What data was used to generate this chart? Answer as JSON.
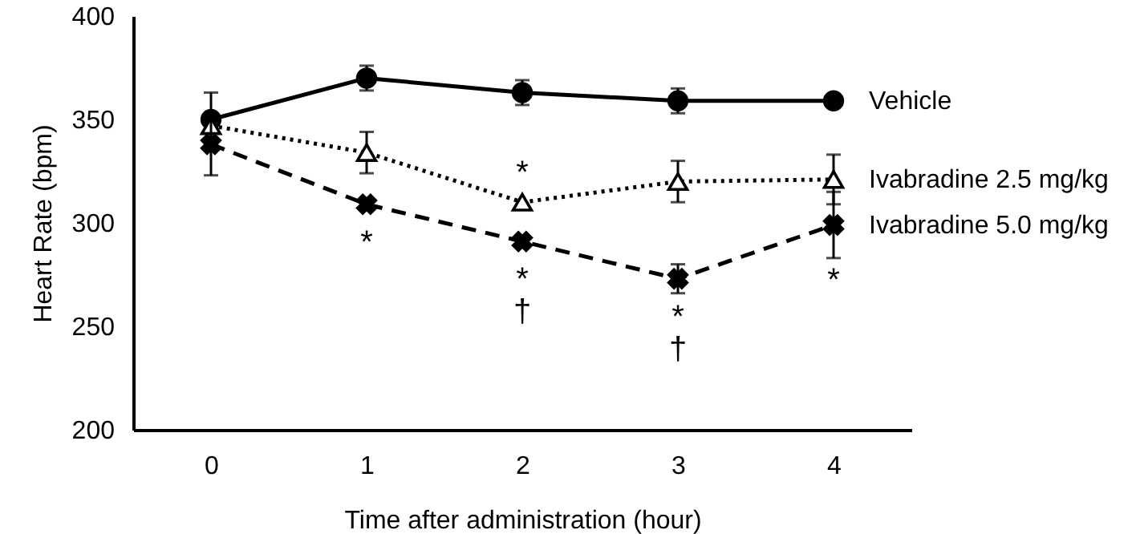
{
  "chart_data": {
    "type": "line",
    "xlabel": "Time after administration (hour)",
    "ylabel": "Heart Rate (bpm)",
    "categories": [
      "0",
      "1",
      "2",
      "3",
      "4"
    ],
    "series": [
      {
        "name": "Vehicle",
        "color": "#000000",
        "marker": "circle",
        "line_style": "solid",
        "values": [
          350,
          370,
          363,
          359,
          359
        ],
        "errors": [
          13,
          6,
          6,
          6,
          null
        ]
      },
      {
        "name": "Ivabradine 2.5 mg/kg",
        "color": "#000000",
        "marker": "triangle",
        "line_style": "dotted",
        "values": [
          347,
          334,
          310,
          320,
          321
        ],
        "errors": [
          null,
          10,
          null,
          10,
          12
        ]
      },
      {
        "name": "Ivabradine 5.0 mg/kg",
        "color": "#000000",
        "marker": "cross",
        "line_style": "dashed",
        "values": [
          338,
          309,
          291,
          273,
          299
        ],
        "errors": [
          15,
          null,
          null,
          7,
          16
        ]
      }
    ],
    "ylim": [
      200,
      400
    ],
    "yticks": [
      200,
      250,
      300,
      350,
      400
    ],
    "annotations": [
      {
        "text": "*",
        "x": "1",
        "y": 309
      },
      {
        "text": "*",
        "x": "2",
        "y": 310
      },
      {
        "text": "*",
        "x": "2",
        "y": 291
      },
      {
        "text": "†",
        "x": "2",
        "y": 291
      },
      {
        "text": "*",
        "x": "3",
        "y": 273
      },
      {
        "text": "†",
        "x": "3",
        "y": 273
      },
      {
        "text": "*",
        "x": "4",
        "y": 299
      }
    ]
  }
}
